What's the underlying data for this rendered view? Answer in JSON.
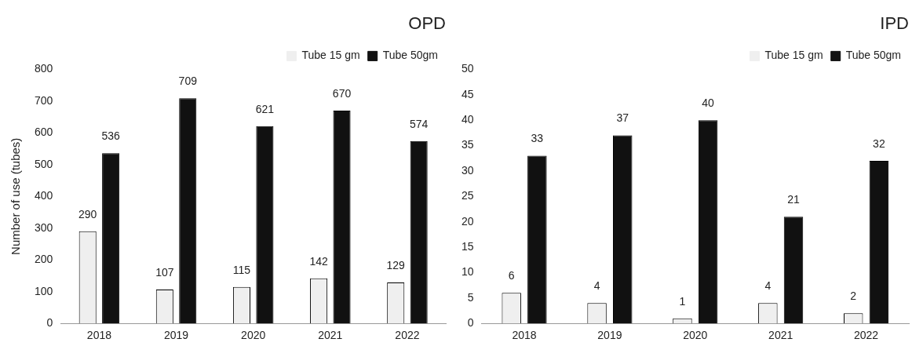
{
  "chart_data": [
    {
      "type": "bar",
      "title": "OPD",
      "ylabel": "Number of use (tubes)",
      "categories": [
        "2018",
        "2019",
        "2020",
        "2021",
        "2022"
      ],
      "series": [
        {
          "name": "Tube 15 gm",
          "color": "#efefef",
          "values": [
            290,
            107,
            115,
            142,
            129
          ]
        },
        {
          "name": "Tube 50gm",
          "color": "#111111",
          "values": [
            536,
            709,
            621,
            670,
            574
          ]
        }
      ],
      "ylim": [
        0,
        800
      ],
      "yticks": [
        0,
        100,
        200,
        300,
        400,
        500,
        600,
        700,
        800
      ],
      "grid": false,
      "legend": "top right",
      "data_labels": true
    },
    {
      "type": "bar",
      "title": "IPD",
      "categories": [
        "2018",
        "2019",
        "2020",
        "2021",
        "2022"
      ],
      "series": [
        {
          "name": "Tube 15 gm",
          "color": "#efefef",
          "values": [
            6,
            4,
            1,
            4,
            2
          ]
        },
        {
          "name": "Tube 50gm",
          "color": "#111111",
          "values": [
            33,
            37,
            40,
            21,
            32
          ]
        }
      ],
      "ylim": [
        0,
        50
      ],
      "yticks": [
        0,
        5,
        10,
        15,
        20,
        25,
        30,
        35,
        40,
        45,
        50
      ],
      "grid": false,
      "legend": "top right",
      "data_labels": true
    }
  ]
}
